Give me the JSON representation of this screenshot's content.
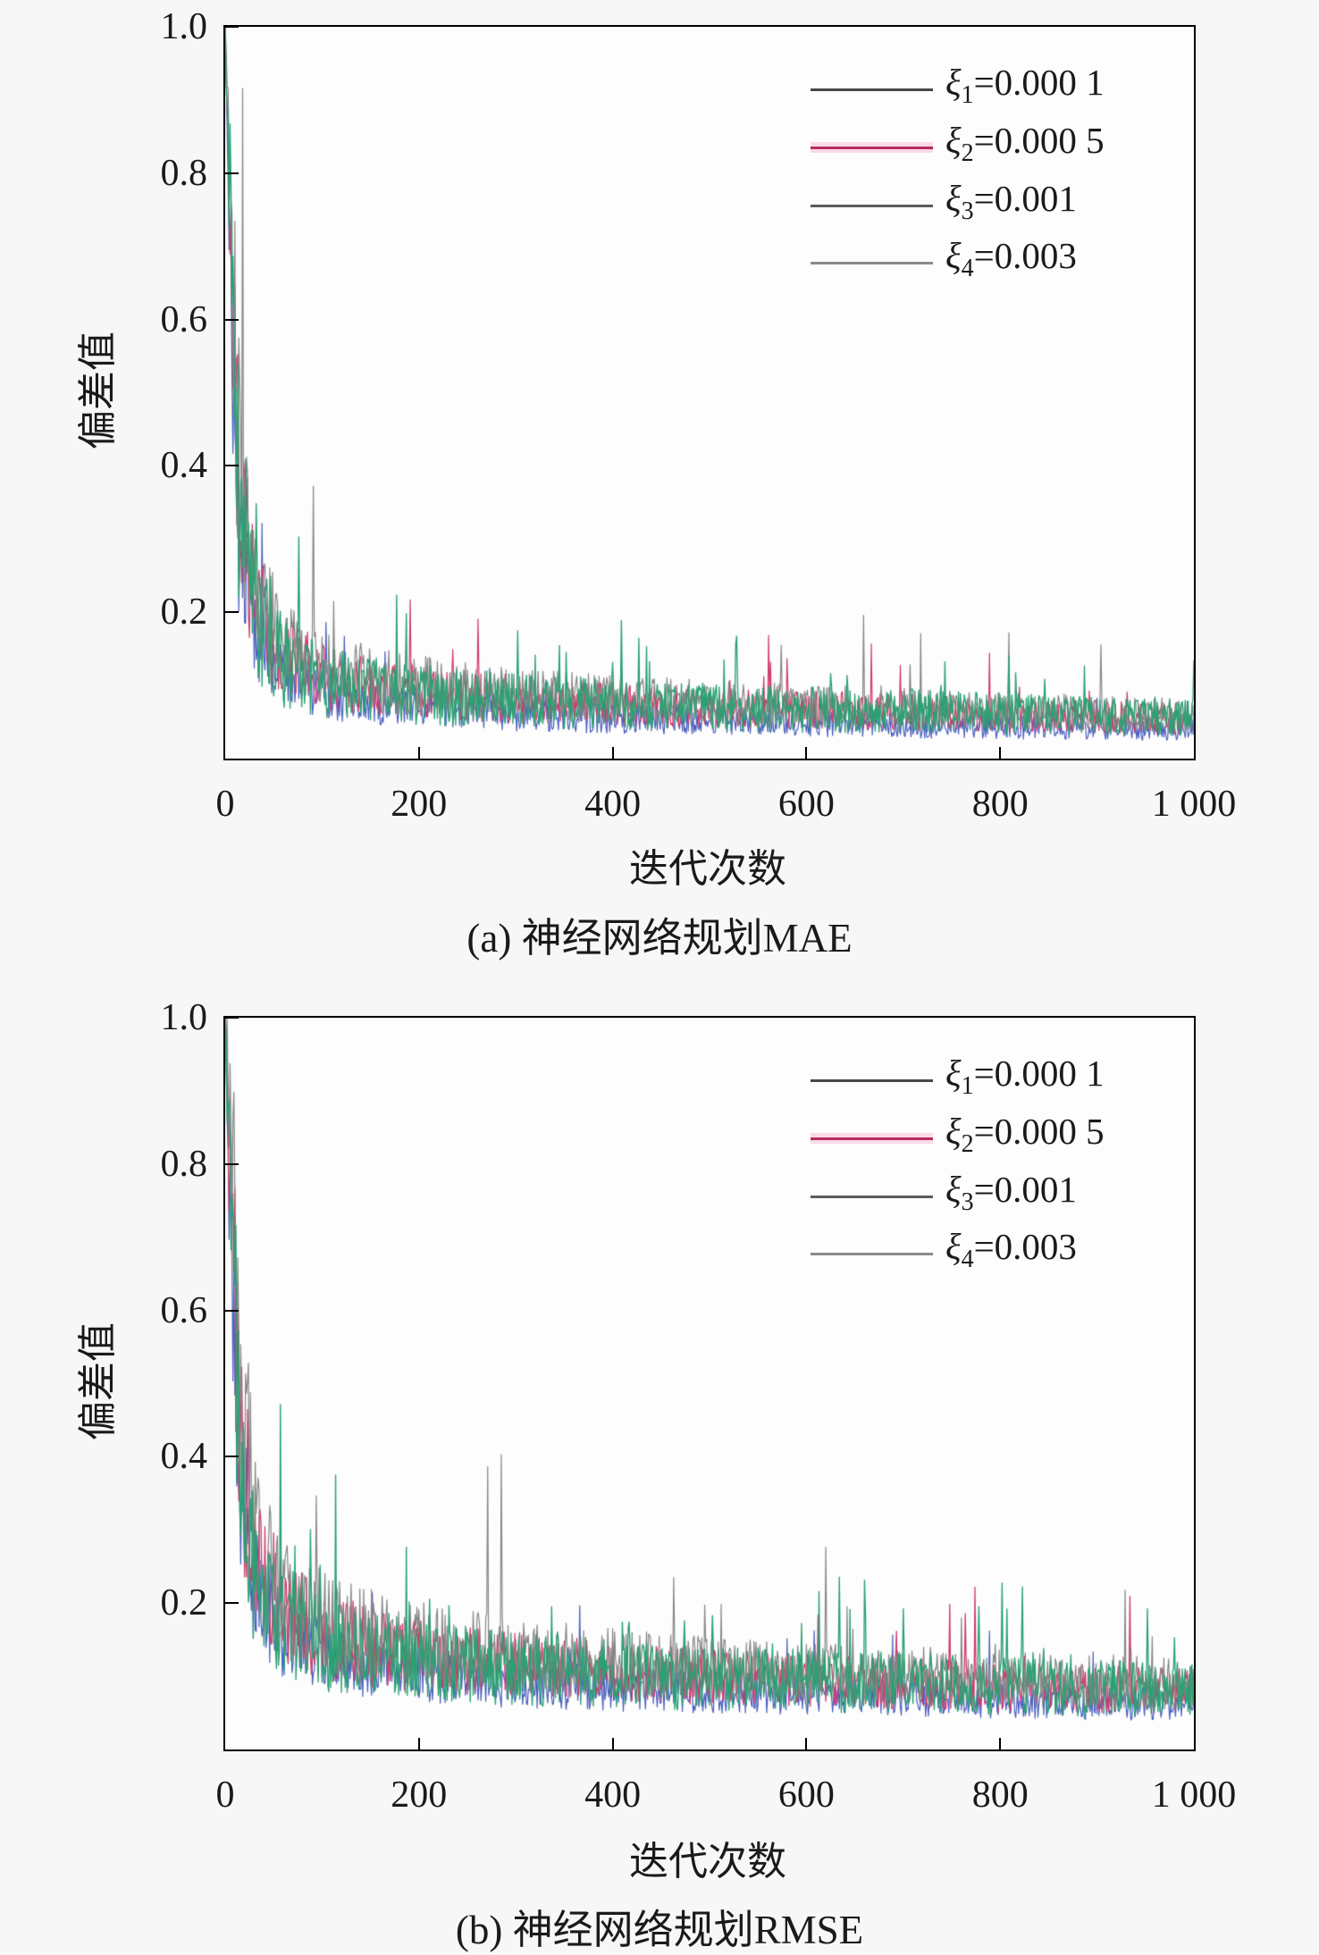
{
  "page": {
    "background": "#f7f7f7",
    "text_color": "#1a1a1a",
    "axis_color": "#000000"
  },
  "chart_data": [
    {
      "panel": "a",
      "type": "line",
      "title": "(a) 神经网络规划MAE",
      "xlabel": "迭代次数",
      "ylabel": "偏差值",
      "xlim": [
        0,
        1000
      ],
      "ylim": [
        0,
        1.0
      ],
      "x_tick_labels": [
        "0",
        "200",
        "400",
        "600",
        "800",
        "1 000"
      ],
      "y_tick_labels": [
        "0.2",
        "0.4",
        "0.6",
        "0.8",
        "1.0"
      ],
      "grid": false,
      "legend_position": "top-right",
      "value_floor": 0.025,
      "series": [
        {
          "name": "ξ1=0.000 1",
          "legend": {
            "symbol": "ξ",
            "subscript": "1",
            "text": "=0.000 1"
          },
          "legend_color": "#474747",
          "halo_color": "",
          "curve_color": "#878787",
          "line_width": 1.2,
          "seed": 101,
          "jitter": 0.85,
          "spike_prob": 0.013,
          "spike_gain": 1.5,
          "envelope_x": [
            0,
            6,
            14,
            30,
            60,
            110,
            180,
            300,
            500,
            750,
            1000
          ],
          "envelope_y": [
            1.0,
            0.8,
            0.44,
            0.23,
            0.15,
            0.118,
            0.102,
            0.088,
            0.075,
            0.066,
            0.058
          ]
        },
        {
          "name": "ξ2=0.000 5",
          "legend": {
            "symbol": "ξ",
            "subscript": "2",
            "text": "=0.000 5"
          },
          "legend_color": "#b52e5c",
          "halo_color": "#fbd9e9",
          "curve_color": "#d23a6e",
          "line_width": 1.2,
          "seed": 202,
          "jitter": 0.8,
          "spike_prob": 0.012,
          "spike_gain": 1.1,
          "envelope_x": [
            0,
            6,
            14,
            30,
            60,
            110,
            180,
            300,
            500,
            750,
            1000
          ],
          "envelope_y": [
            1.0,
            0.72,
            0.38,
            0.21,
            0.14,
            0.108,
            0.093,
            0.08,
            0.07,
            0.062,
            0.054
          ]
        },
        {
          "name": "ξ3=0.001",
          "legend": {
            "symbol": "ξ",
            "subscript": "3",
            "text": "=0.001"
          },
          "legend_color": "#5c5c5c",
          "halo_color": "",
          "curve_color": "#4b5fc0",
          "line_width": 1.2,
          "seed": 303,
          "jitter": 0.78,
          "spike_prob": 0.008,
          "spike_gain": 0.9,
          "envelope_x": [
            0,
            6,
            14,
            30,
            60,
            110,
            180,
            300,
            500,
            750,
            1000
          ],
          "envelope_y": [
            1.0,
            0.64,
            0.31,
            0.17,
            0.11,
            0.085,
            0.072,
            0.061,
            0.052,
            0.045,
            0.04
          ]
        },
        {
          "name": "ξ4=0.003",
          "legend": {
            "symbol": "ξ",
            "subscript": "4",
            "text": "=0.003"
          },
          "legend_color": "#8a8a8a",
          "halo_color": "",
          "curve_color": "#2aa173",
          "line_width": 1.35,
          "seed": 404,
          "jitter": 0.95,
          "spike_prob": 0.035,
          "spike_gain": 1.15,
          "envelope_x": [
            0,
            6,
            14,
            30,
            60,
            110,
            180,
            300,
            500,
            750,
            1000
          ],
          "envelope_y": [
            1.0,
            0.68,
            0.35,
            0.195,
            0.132,
            0.102,
            0.09,
            0.079,
            0.07,
            0.063,
            0.056
          ]
        }
      ],
      "draw_order": [
        2,
        1,
        0,
        3
      ],
      "observed": {
        "start_value": 1.0,
        "noise_floor_at_1000": 0.05,
        "max_spike_value": 0.32,
        "spike_region_x": [
          180,
          220
        ]
      }
    },
    {
      "panel": "b",
      "type": "line",
      "title": "(b) 神经网络规划RMSE",
      "xlabel": "迭代次数",
      "ylabel": "偏差值",
      "xlim": [
        0,
        1000
      ],
      "ylim": [
        0,
        1.0
      ],
      "x_tick_labels": [
        "0",
        "200",
        "400",
        "600",
        "800",
        "1 000"
      ],
      "y_tick_labels": [
        "0.2",
        "0.4",
        "0.6",
        "0.8",
        "1.0"
      ],
      "grid": false,
      "legend_position": "top-right",
      "value_floor": 0.035,
      "series": [
        {
          "name": "ξ1=0.000 1",
          "legend": {
            "symbol": "ξ",
            "subscript": "1",
            "text": "=0.000 1"
          },
          "legend_color": "#474747",
          "halo_color": "",
          "curve_color": "#878787",
          "line_width": 1.2,
          "seed": 111,
          "jitter": 0.8,
          "spike_prob": 0.013,
          "spike_gain": 1.9,
          "envelope_x": [
            0,
            6,
            14,
            30,
            60,
            110,
            180,
            300,
            500,
            750,
            1000
          ],
          "envelope_y": [
            1.0,
            0.85,
            0.52,
            0.3,
            0.205,
            0.168,
            0.148,
            0.128,
            0.11,
            0.099,
            0.09
          ]
        },
        {
          "name": "ξ2=0.000 5",
          "legend": {
            "symbol": "ξ",
            "subscript": "2",
            "text": "=0.000 5"
          },
          "legend_color": "#b52e5c",
          "halo_color": "#fbd9e9",
          "curve_color": "#d23a6e",
          "line_width": 1.3,
          "seed": 222,
          "jitter": 0.78,
          "spike_prob": 0.012,
          "spike_gain": 1.2,
          "envelope_x": [
            0,
            6,
            14,
            30,
            60,
            110,
            180,
            300,
            500,
            750,
            1000
          ],
          "envelope_y": [
            1.0,
            0.76,
            0.45,
            0.27,
            0.188,
            0.152,
            0.133,
            0.115,
            0.099,
            0.088,
            0.079
          ]
        },
        {
          "name": "ξ3=0.001",
          "legend": {
            "symbol": "ξ",
            "subscript": "3",
            "text": "=0.001"
          },
          "legend_color": "#5c5c5c",
          "halo_color": "",
          "curve_color": "#4b5fc0",
          "line_width": 1.2,
          "seed": 333,
          "jitter": 0.75,
          "spike_prob": 0.008,
          "spike_gain": 1.0,
          "envelope_x": [
            0,
            6,
            14,
            30,
            60,
            110,
            180,
            300,
            500,
            750,
            1000
          ],
          "envelope_y": [
            1.0,
            0.68,
            0.38,
            0.225,
            0.155,
            0.122,
            0.105,
            0.09,
            0.078,
            0.069,
            0.061
          ]
        },
        {
          "name": "ξ4=0.003",
          "legend": {
            "symbol": "ξ",
            "subscript": "4",
            "text": "=0.003"
          },
          "legend_color": "#8a8a8a",
          "halo_color": "",
          "curve_color": "#2aa173",
          "line_width": 1.35,
          "seed": 444,
          "jitter": 0.92,
          "spike_prob": 0.035,
          "spike_gain": 1.25,
          "envelope_x": [
            0,
            6,
            14,
            30,
            60,
            110,
            180,
            300,
            500,
            750,
            1000
          ],
          "envelope_y": [
            1.0,
            0.72,
            0.42,
            0.25,
            0.175,
            0.143,
            0.125,
            0.11,
            0.097,
            0.089,
            0.081
          ]
        }
      ],
      "draw_order": [
        2,
        1,
        0,
        3
      ],
      "observed": {
        "start_value": 1.0,
        "noise_floor_at_1000": 0.08,
        "max_spike_value": 0.46,
        "spike_region_x": [
          180,
          225
        ]
      }
    }
  ]
}
